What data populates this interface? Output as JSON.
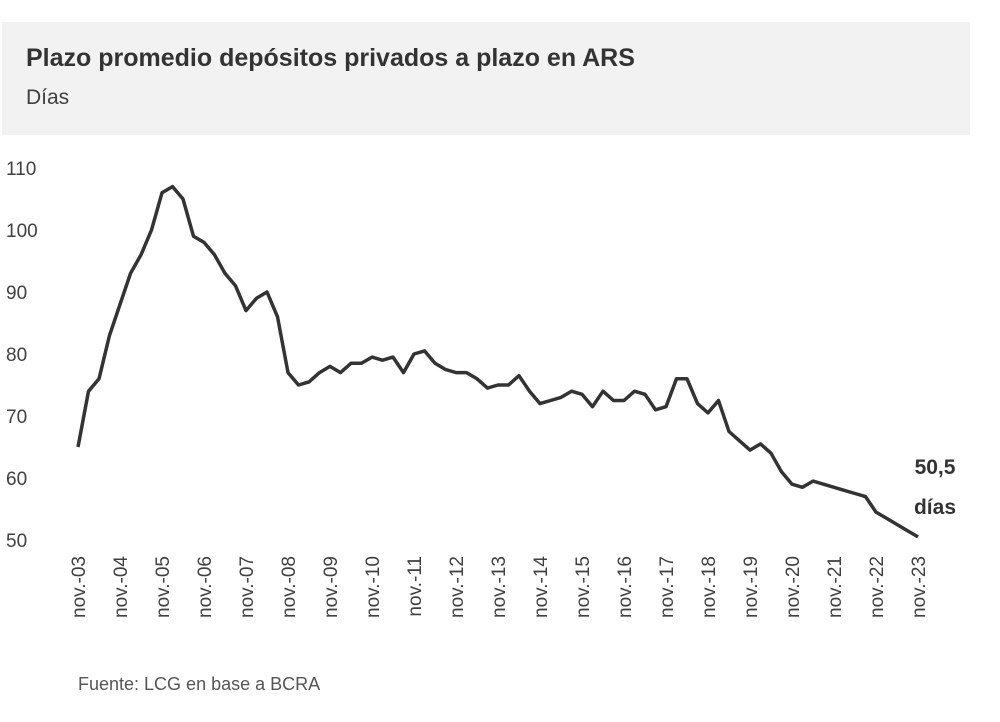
{
  "chart_data": {
    "type": "line",
    "title": "Plazo promedio depósitos privados a plazo en ARS",
    "subtitle": "Días",
    "source": "Fuente: LCG en base a BCRA",
    "annotation": [
      "50,5",
      "días"
    ],
    "categories": [
      "nov.-03",
      null,
      null,
      null,
      "nov.-04",
      null,
      null,
      null,
      "nov.-05",
      null,
      null,
      null,
      "nov.-06",
      null,
      null,
      null,
      "nov.-07",
      null,
      null,
      null,
      "nov.-08",
      null,
      null,
      null,
      "nov.-09",
      null,
      null,
      null,
      "nov.-10",
      null,
      null,
      null,
      "nov.-11",
      null,
      null,
      null,
      "nov.-12",
      null,
      null,
      null,
      "nov.-13",
      null,
      null,
      null,
      "nov.-14",
      null,
      null,
      null,
      "nov.-15",
      null,
      null,
      null,
      "nov.-16",
      null,
      null,
      null,
      "nov.-17",
      null,
      null,
      null,
      "nov.-18",
      null,
      null,
      null,
      "nov.-19",
      null,
      null,
      null,
      "nov.-20",
      null,
      null,
      null,
      "nov.-21",
      null,
      null,
      null,
      "nov.-22",
      null,
      null,
      null,
      "nov.-23"
    ],
    "values": [
      65,
      74,
      76,
      83,
      88,
      93,
      96,
      100,
      106,
      107,
      105,
      99,
      98,
      96,
      93,
      91,
      87,
      89,
      90,
      86,
      77,
      75,
      75.5,
      77,
      78,
      77,
      78.5,
      78.5,
      79.5,
      79,
      79.5,
      77,
      80,
      80.5,
      78.5,
      77.5,
      77,
      77,
      76,
      74.5,
      75,
      75,
      76.5,
      74,
      72,
      72.5,
      73,
      74,
      73.5,
      71.5,
      74,
      72.5,
      72.5,
      74,
      73.5,
      71,
      71.5,
      76,
      76,
      72,
      70.5,
      72.5,
      67.5,
      66,
      64.5,
      65.5,
      64,
      61,
      59,
      58.5,
      59.5,
      59,
      58.5,
      58,
      57.5,
      57,
      54.5,
      53.5,
      52.5,
      51.5,
      50.5
    ],
    "color": "#333333",
    "ylim": [
      50,
      110
    ],
    "yticks": [
      50,
      60,
      70,
      80,
      90,
      100,
      110
    ]
  }
}
